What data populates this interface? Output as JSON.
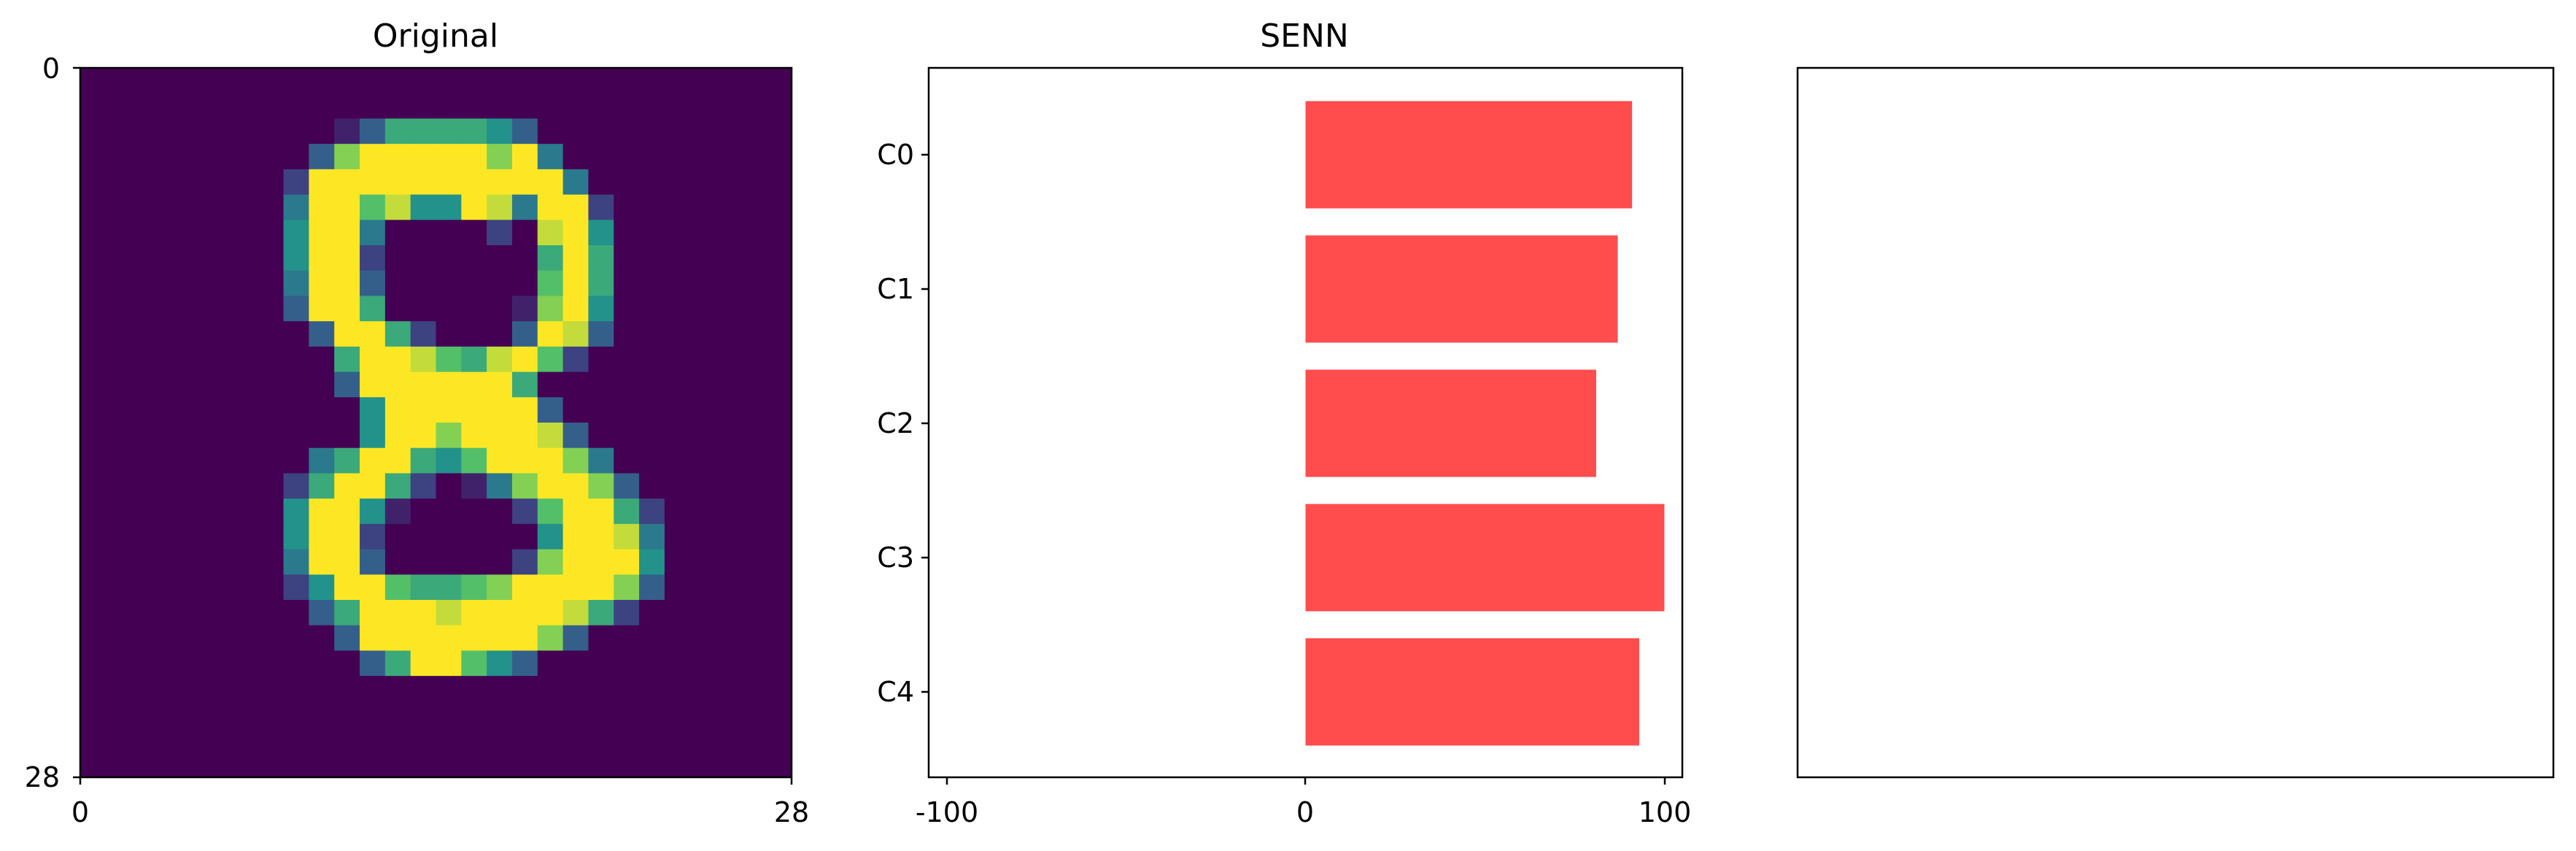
{
  "figure": {
    "panels": [
      {
        "title": "Original",
        "x_ticks": [
          "0",
          "28"
        ],
        "y_ticks": [
          "0",
          "28"
        ]
      },
      {
        "title": "SENN",
        "x_ticks": [
          "-100",
          "0",
          "100"
        ]
      },
      {
        "title": ""
      }
    ]
  },
  "chart_data": [
    {
      "type": "heatmap",
      "title": "Original",
      "xlim": [
        0,
        28
      ],
      "ylim": [
        28,
        0
      ],
      "colormap": "viridis",
      "rows": [
        [
          0,
          0,
          0,
          0,
          0,
          0,
          0,
          0,
          0,
          0,
          0,
          0,
          0,
          0,
          0,
          0,
          0,
          0,
          0,
          0,
          0,
          0,
          0,
          0,
          0,
          0,
          0,
          0
        ],
        [
          0,
          0,
          0,
          0,
          0,
          0,
          0,
          0,
          0,
          0,
          0,
          0,
          0,
          0,
          0,
          0,
          0,
          0,
          0,
          0,
          0,
          0,
          0,
          0,
          0,
          0,
          0,
          0
        ],
        [
          0,
          0,
          0,
          0,
          0,
          0,
          0,
          0,
          0,
          0,
          10,
          30,
          60,
          60,
          60,
          60,
          50,
          30,
          0,
          0,
          0,
          0,
          0,
          0,
          0,
          0,
          0,
          0
        ],
        [
          0,
          0,
          0,
          0,
          0,
          0,
          0,
          0,
          0,
          30,
          80,
          99,
          99,
          99,
          99,
          99,
          80,
          99,
          40,
          0,
          0,
          0,
          0,
          0,
          0,
          0,
          0,
          0
        ],
        [
          0,
          0,
          0,
          0,
          0,
          0,
          0,
          0,
          20,
          99,
          99,
          99,
          99,
          99,
          99,
          99,
          99,
          99,
          99,
          40,
          0,
          0,
          0,
          0,
          0,
          0,
          0,
          0
        ],
        [
          0,
          0,
          0,
          0,
          0,
          0,
          0,
          0,
          40,
          99,
          99,
          70,
          90,
          50,
          50,
          99,
          90,
          40,
          99,
          99,
          20,
          0,
          0,
          0,
          0,
          0,
          0,
          0
        ],
        [
          0,
          0,
          0,
          0,
          0,
          0,
          0,
          0,
          50,
          99,
          99,
          40,
          0,
          0,
          0,
          0,
          20,
          0,
          90,
          99,
          50,
          0,
          0,
          0,
          0,
          0,
          0,
          0
        ],
        [
          0,
          0,
          0,
          0,
          0,
          0,
          0,
          0,
          50,
          99,
          99,
          20,
          0,
          0,
          0,
          0,
          0,
          0,
          60,
          99,
          60,
          0,
          0,
          0,
          0,
          0,
          0,
          0
        ],
        [
          0,
          0,
          0,
          0,
          0,
          0,
          0,
          0,
          40,
          99,
          99,
          30,
          0,
          0,
          0,
          0,
          0,
          0,
          70,
          99,
          60,
          0,
          0,
          0,
          0,
          0,
          0,
          0
        ],
        [
          0,
          0,
          0,
          0,
          0,
          0,
          0,
          0,
          30,
          99,
          99,
          60,
          0,
          0,
          0,
          0,
          0,
          10,
          80,
          99,
          50,
          0,
          0,
          0,
          0,
          0,
          0,
          0
        ],
        [
          0,
          0,
          0,
          0,
          0,
          0,
          0,
          0,
          0,
          30,
          99,
          99,
          60,
          20,
          0,
          0,
          0,
          30,
          99,
          90,
          30,
          0,
          0,
          0,
          0,
          0,
          0,
          0
        ],
        [
          0,
          0,
          0,
          0,
          0,
          0,
          0,
          0,
          0,
          0,
          60,
          99,
          99,
          90,
          70,
          60,
          90,
          99,
          70,
          20,
          0,
          0,
          0,
          0,
          0,
          0,
          0,
          0
        ],
        [
          0,
          0,
          0,
          0,
          0,
          0,
          0,
          0,
          0,
          0,
          30,
          99,
          99,
          99,
          99,
          99,
          99,
          60,
          0,
          0,
          0,
          0,
          0,
          0,
          0,
          0,
          0,
          0
        ],
        [
          0,
          0,
          0,
          0,
          0,
          0,
          0,
          0,
          0,
          0,
          0,
          50,
          99,
          99,
          99,
          99,
          99,
          99,
          30,
          0,
          0,
          0,
          0,
          0,
          0,
          0,
          0,
          0
        ],
        [
          0,
          0,
          0,
          0,
          0,
          0,
          0,
          0,
          0,
          0,
          0,
          50,
          99,
          99,
          80,
          99,
          99,
          99,
          90,
          30,
          0,
          0,
          0,
          0,
          0,
          0,
          0,
          0
        ],
        [
          0,
          0,
          0,
          0,
          0,
          0,
          0,
          0,
          0,
          40,
          60,
          99,
          99,
          60,
          50,
          70,
          99,
          99,
          99,
          80,
          40,
          0,
          0,
          0,
          0,
          0,
          0,
          0
        ],
        [
          0,
          0,
          0,
          0,
          0,
          0,
          0,
          0,
          20,
          60,
          99,
          99,
          60,
          20,
          0,
          10,
          40,
          80,
          99,
          99,
          80,
          30,
          0,
          0,
          0,
          0,
          0,
          0
        ],
        [
          0,
          0,
          0,
          0,
          0,
          0,
          0,
          0,
          50,
          99,
          99,
          50,
          10,
          0,
          0,
          0,
          0,
          20,
          70,
          99,
          99,
          60,
          20,
          0,
          0,
          0,
          0,
          0
        ],
        [
          0,
          0,
          0,
          0,
          0,
          0,
          0,
          0,
          50,
          99,
          99,
          20,
          0,
          0,
          0,
          0,
          0,
          0,
          50,
          99,
          99,
          90,
          40,
          0,
          0,
          0,
          0,
          0
        ],
        [
          0,
          0,
          0,
          0,
          0,
          0,
          0,
          0,
          40,
          99,
          99,
          30,
          0,
          0,
          0,
          0,
          0,
          20,
          80,
          99,
          99,
          99,
          50,
          0,
          0,
          0,
          0,
          0
        ],
        [
          0,
          0,
          0,
          0,
          0,
          0,
          0,
          0,
          20,
          50,
          99,
          99,
          70,
          60,
          60,
          70,
          80,
          99,
          99,
          99,
          99,
          80,
          30,
          0,
          0,
          0,
          0,
          0
        ],
        [
          0,
          0,
          0,
          0,
          0,
          0,
          0,
          0,
          0,
          30,
          60,
          99,
          99,
          99,
          90,
          99,
          99,
          99,
          99,
          90,
          60,
          20,
          0,
          0,
          0,
          0,
          0,
          0
        ],
        [
          0,
          0,
          0,
          0,
          0,
          0,
          0,
          0,
          0,
          0,
          30,
          99,
          99,
          99,
          99,
          99,
          99,
          99,
          80,
          30,
          0,
          0,
          0,
          0,
          0,
          0,
          0,
          0
        ],
        [
          0,
          0,
          0,
          0,
          0,
          0,
          0,
          0,
          0,
          0,
          0,
          30,
          60,
          99,
          99,
          70,
          50,
          30,
          0,
          0,
          0,
          0,
          0,
          0,
          0,
          0,
          0,
          0
        ],
        [
          0,
          0,
          0,
          0,
          0,
          0,
          0,
          0,
          0,
          0,
          0,
          0,
          0,
          0,
          0,
          0,
          0,
          0,
          0,
          0,
          0,
          0,
          0,
          0,
          0,
          0,
          0,
          0
        ],
        [
          0,
          0,
          0,
          0,
          0,
          0,
          0,
          0,
          0,
          0,
          0,
          0,
          0,
          0,
          0,
          0,
          0,
          0,
          0,
          0,
          0,
          0,
          0,
          0,
          0,
          0,
          0,
          0
        ],
        [
          0,
          0,
          0,
          0,
          0,
          0,
          0,
          0,
          0,
          0,
          0,
          0,
          0,
          0,
          0,
          0,
          0,
          0,
          0,
          0,
          0,
          0,
          0,
          0,
          0,
          0,
          0,
          0
        ],
        [
          0,
          0,
          0,
          0,
          0,
          0,
          0,
          0,
          0,
          0,
          0,
          0,
          0,
          0,
          0,
          0,
          0,
          0,
          0,
          0,
          0,
          0,
          0,
          0,
          0,
          0,
          0,
          0
        ]
      ],
      "xlabel": "",
      "ylabel": ""
    },
    {
      "type": "bar",
      "orientation": "horizontal",
      "title": "SENN",
      "categories": [
        "C0",
        "C1",
        "C2",
        "C3",
        "C4"
      ],
      "values": [
        91,
        87,
        81,
        100,
        93
      ],
      "xlim": [
        -105,
        105
      ],
      "color": "#ff4c4c",
      "xlabel": "",
      "ylabel": ""
    },
    {
      "type": "empty",
      "title": ""
    }
  ]
}
